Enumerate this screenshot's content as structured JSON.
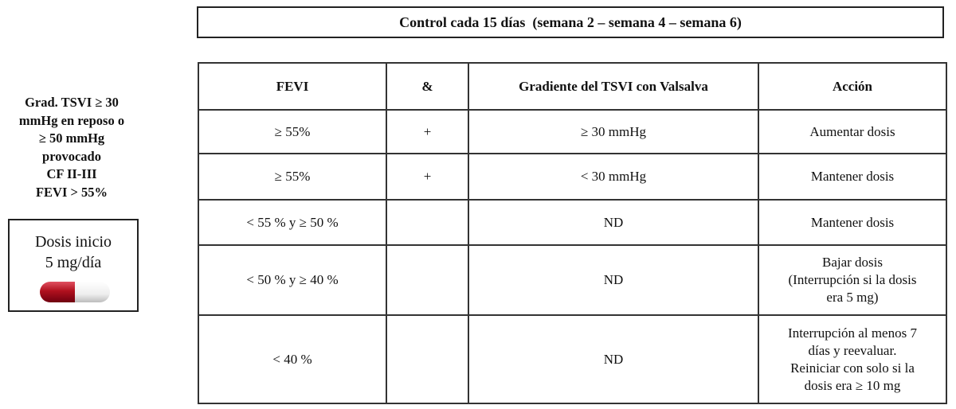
{
  "header": {
    "title": "Control cada 15 días  (semana 2 – semana 4 – semana 6)"
  },
  "criteria": {
    "lines": [
      "Grad. TSVI ≥ 30",
      "mmHg en reposo o",
      "≥ 50 mmHg",
      "provocado",
      "CF II-III",
      "FEVI > 55%"
    ]
  },
  "dose": {
    "lines": [
      "Dosis inicio",
      "5 mg/día"
    ]
  },
  "table": {
    "columns": [
      "FEVI",
      "&",
      "Gradiente del TSVI con Valsalva",
      "Acción"
    ],
    "rows": [
      {
        "fevi": "≥ 55%",
        "op": "+",
        "gradient": "≥ 30 mmHg",
        "action": [
          "Aumentar dosis"
        ]
      },
      {
        "fevi": "≥ 55%",
        "op": "+",
        "gradient": "< 30 mmHg",
        "action": [
          "Mantener dosis"
        ]
      },
      {
        "fevi": "< 55 % y  ≥ 50 %",
        "gradient": "ND",
        "action": [
          "Mantener dosis"
        ]
      },
      {
        "fevi": "< 50 % y  ≥ 40 %",
        "gradient": "ND",
        "action": [
          "Bajar dosis",
          "(Interrupción si la dosis",
          "era 5 mg)"
        ]
      },
      {
        "fevi": "< 40 %",
        "gradient": "ND",
        "action": [
          "Interrupción al menos 7",
          "días y reevaluar.",
          "Reiniciar con solo si la",
          "dosis era ≥ 10 mg"
        ]
      }
    ]
  }
}
